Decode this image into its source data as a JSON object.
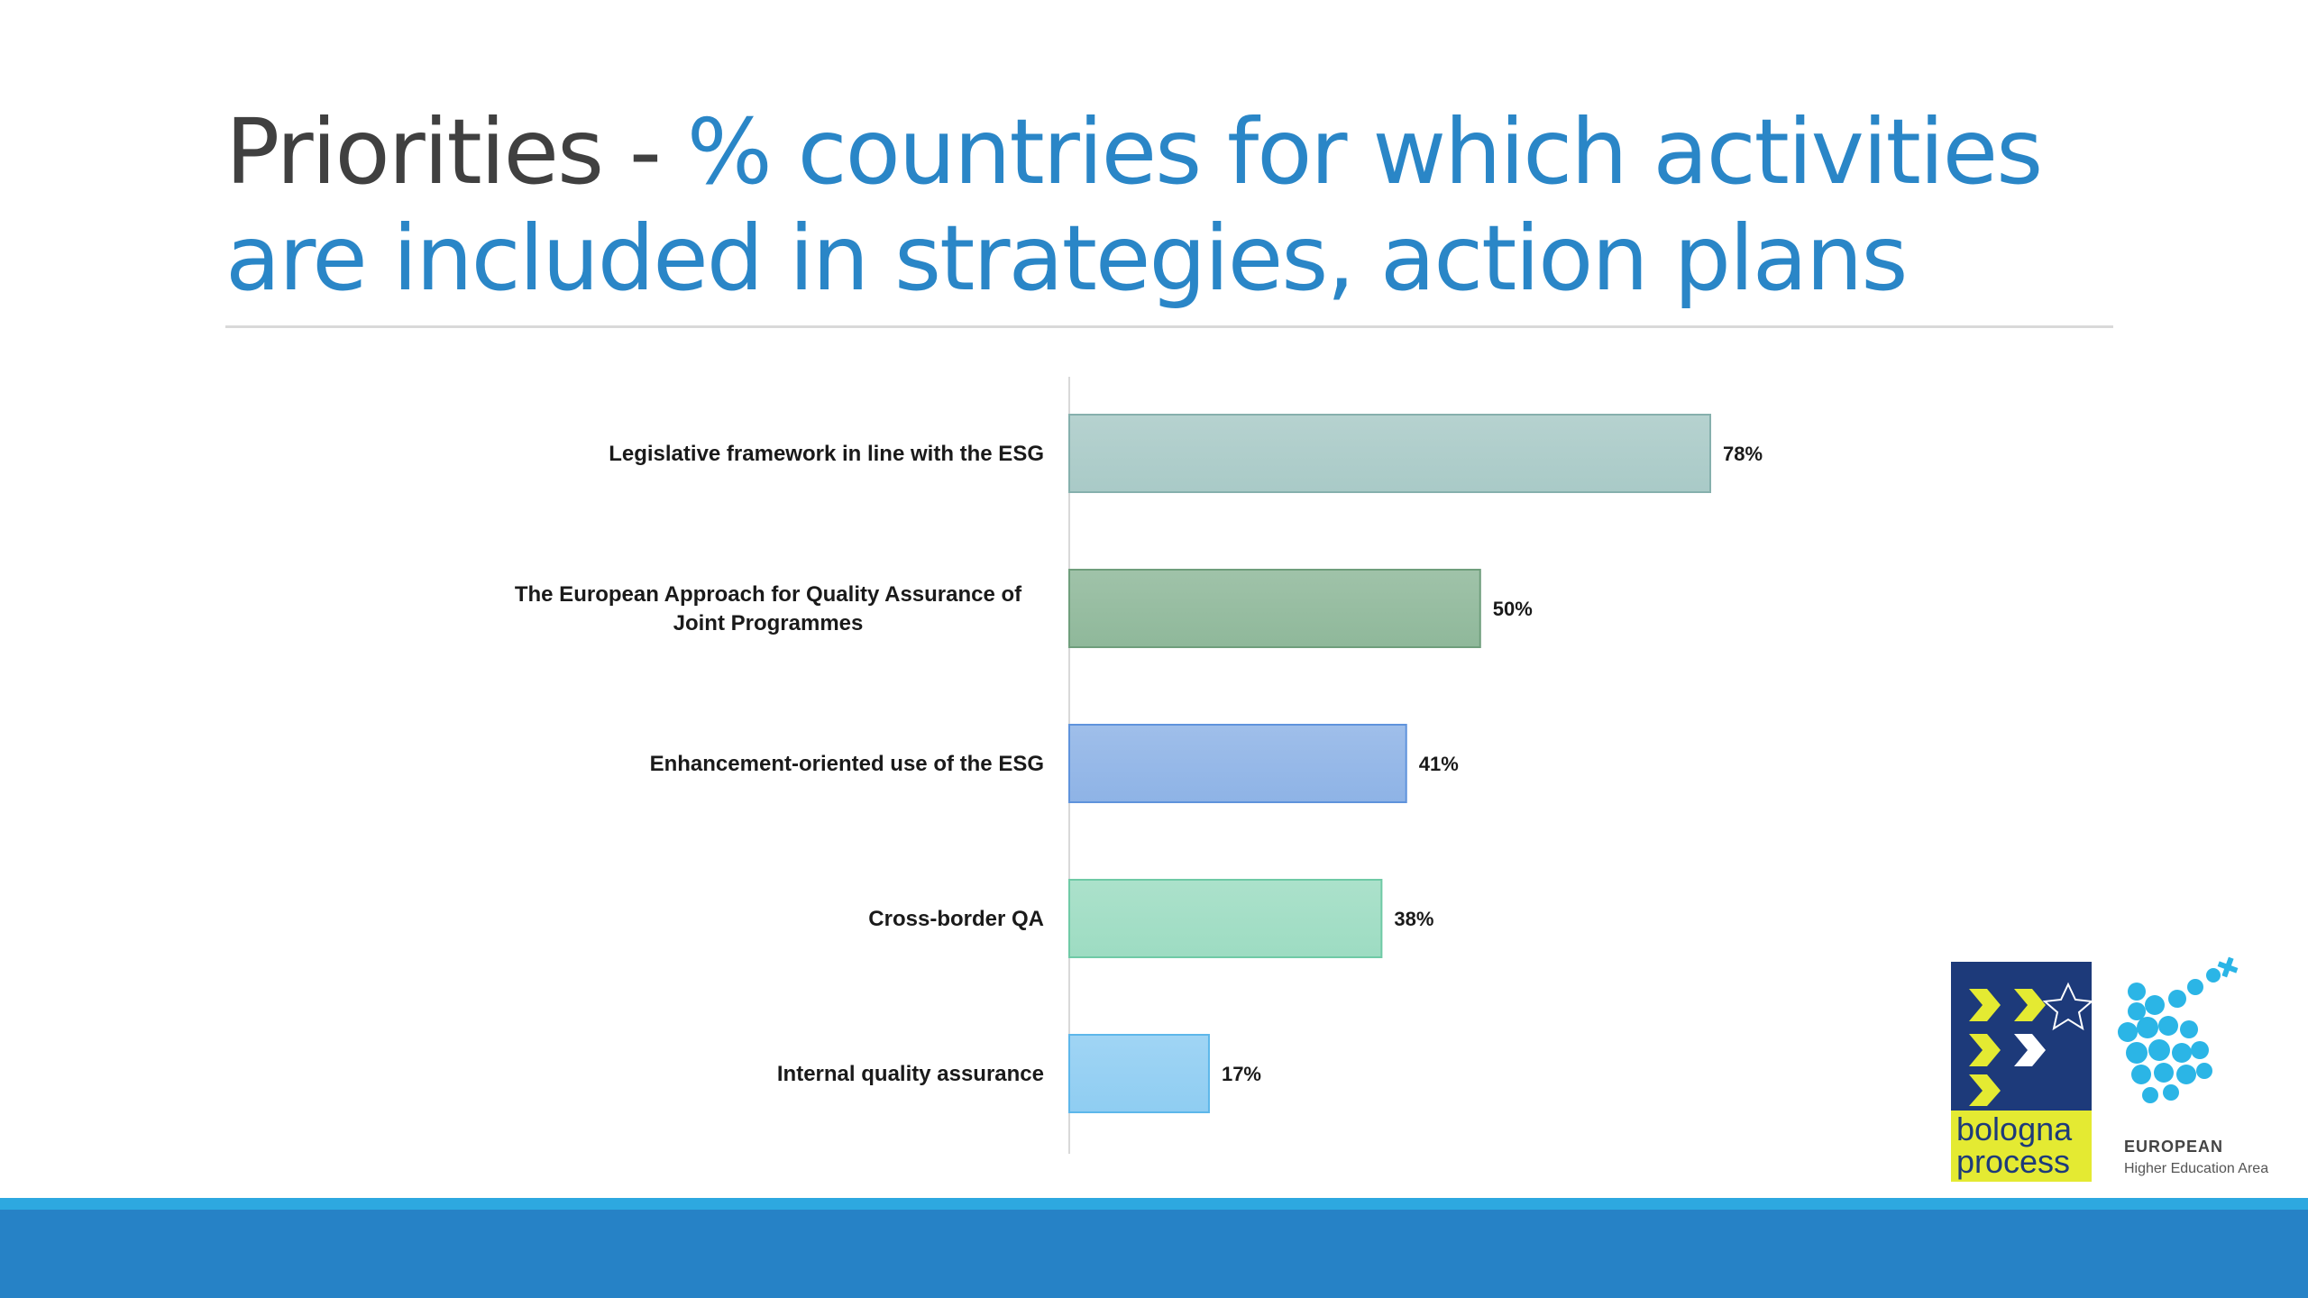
{
  "slide": {
    "title_prefix": "Priorities - ",
    "title_main": "% countries for which activities are included in strategies, action plans"
  },
  "colors": {
    "title_dark": "#404040",
    "title_blue": "#2a86c7",
    "bottom_band": "#2682c6",
    "bottom_thin": "#2da8e0"
  },
  "chart_data": {
    "type": "bar",
    "orientation": "horizontal",
    "categories": [
      "Legislative framework in line with the ESG",
      "The European Approach for Quality Assurance of Joint Programmes",
      "Enhancement-oriented use of the ESG",
      "Cross-border QA",
      "Internal quality assurance"
    ],
    "values": [
      78,
      50,
      41,
      38,
      17
    ],
    "value_labels": [
      "78%",
      "50%",
      "41%",
      "38%",
      "17%"
    ],
    "bar_colors": [
      "#a9cac7",
      "#8fb89a",
      "#8eb3e6",
      "#9ddcc2",
      "#8fcdf2"
    ],
    "bar_edge_colors": [
      "#86b0ad",
      "#6f9e7c",
      "#5f93dc",
      "#6fcaa6",
      "#5db7ea"
    ],
    "xlim": [
      0,
      100
    ],
    "grid": false,
    "legend": "none",
    "xlabel": "",
    "ylabel": ""
  },
  "logos": {
    "bologna_line1": "bologna",
    "bologna_line2": "process",
    "ehea_line1": "EUROPEAN",
    "ehea_line2": "Higher Education Area"
  }
}
